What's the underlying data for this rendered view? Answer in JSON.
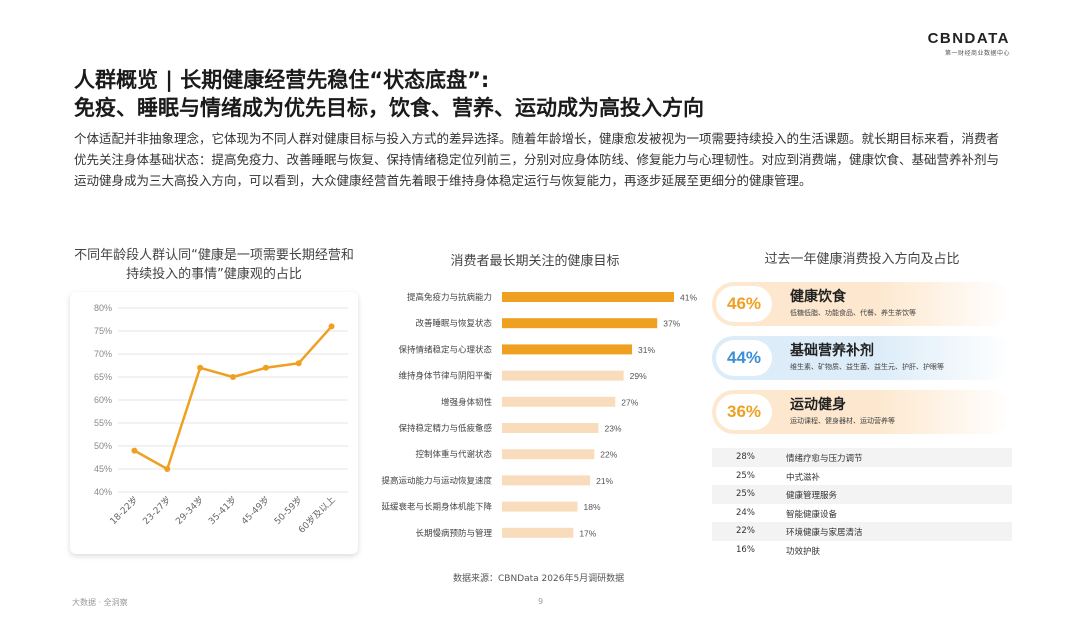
{
  "logo": {
    "mark": "CBNDATA",
    "sub": "第一财经商业数据中心"
  },
  "title": {
    "line1": "人群概览 | 长期健康经营先稳住“状态底盘”:",
    "line2": "免疫、睡眠与情绪成为优先目标，饮食、营养、运动成为高投入方向"
  },
  "intro": "个体适配并非抽象理念，它体现为不同人群对健康目标与投入方式的差异选择。随着年龄增长，健康愈发被视为一项需要持续投入的生活课题。就长期目标来看，消费者优先关注身体基础状态：提高免疫力、改善睡眠与恢复、保持情绪稳定位列前三，分别对应身体防线、修复能力与心理韧性。对应到消费端，健康饮食、基础营养补剂与运动健身成为三大高投入方向，可以看到，大众健康经营首先着眼于维持身体稳定运行与恢复能力，再逐步延展至更细分的健康管理。",
  "chart_data": [
    {
      "type": "line",
      "title": "不同年龄段人群认同“健康是一项需要长期经营和持续投入的事情”健康观的占比",
      "x": [
        "18-22岁",
        "23-27岁",
        "29-34岁",
        "35-41岁",
        "45-49岁",
        "50-59岁",
        "60岁及以上"
      ],
      "series": [
        {
          "values": [
            49,
            45,
            67,
            65,
            67,
            68,
            76
          ]
        }
      ],
      "ylim": [
        40,
        80
      ],
      "yticks": [
        "40%",
        "45%",
        "50%",
        "55%",
        "60%",
        "65%",
        "70%",
        "75%",
        "80%"
      ],
      "color": "#f0a020",
      "grid": true
    },
    {
      "type": "bar",
      "orientation": "horizontal",
      "title": "消费者最长期关注的健康目标",
      "categories": [
        "提高免疫力与抗病能力",
        "改善睡眠与恢复状态",
        "保持情绪稳定与心理状态",
        "维持身体节律与阴阳平衡",
        "增强身体韧性",
        "保持稳定精力与低疲惫感",
        "控制体重与代谢状态",
        "提高运动能力与运动恢复速度",
        "延缓衰老与长期身体机能下降",
        "长期慢病预防与管理"
      ],
      "values": [
        41,
        37,
        31,
        29,
        27,
        23,
        22,
        21,
        18,
        17
      ],
      "labels": [
        "41%",
        "37%",
        "31%",
        "29%",
        "27%",
        "23%",
        "22%",
        "21%",
        "18%",
        "17%"
      ],
      "highlight_count": 3,
      "highlight_color": "#f0a020",
      "base_color": "#f8dcbc"
    },
    {
      "type": "table",
      "title": "过去一年健康消费投入方向及占比",
      "top": [
        {
          "pct": "46%",
          "name": "健康饮食",
          "desc": "低糖低脂、功能食品、代餐、养生茶饮等",
          "color": "#f0a020",
          "bg": "#fde8cf"
        },
        {
          "pct": "44%",
          "name": "基础营养补剂",
          "desc": "维生素、矿物质、益生菌、益生元、护肝、护眼等",
          "color": "#3b8fd6",
          "bg": "#dcecf8"
        },
        {
          "pct": "36%",
          "name": "运动健身",
          "desc": "运动课程、健身器材、运动营养等",
          "color": "#f0a020",
          "bg": "#fde8cf"
        }
      ],
      "rows": [
        {
          "pct": "28%",
          "name": "情绪疗愈与压力调节"
        },
        {
          "pct": "25%",
          "name": "中式滋补"
        },
        {
          "pct": "25%",
          "name": "健康管理服务"
        },
        {
          "pct": "24%",
          "name": "智能健康设备"
        },
        {
          "pct": "22%",
          "name": "环境健康与家居清洁"
        },
        {
          "pct": "16%",
          "name": "功效护肤"
        }
      ]
    }
  ],
  "source": "数据来源：CBNData 2026年5月调研数据",
  "footer": {
    "left": "大数据 · 全洞察",
    "page": "9"
  }
}
